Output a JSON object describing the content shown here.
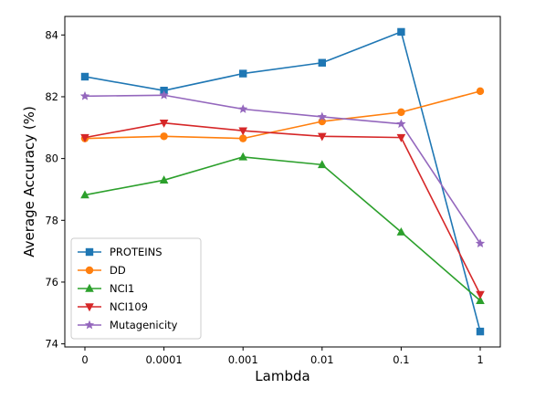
{
  "chart_data": {
    "type": "line",
    "categories": [
      "0",
      "0.0001",
      "0.001",
      "0.01",
      "0.1",
      "1"
    ],
    "xlabel": "Lambda",
    "ylabel": "Average Accuracy (%)",
    "ylim": [
      73.9,
      84.6
    ],
    "yticks": [
      74,
      76,
      78,
      80,
      82,
      84
    ],
    "grid": false,
    "legend_position": "lower-left",
    "series": [
      {
        "name": "PROTEINS",
        "color": "#1f77b4",
        "marker": "square",
        "values": [
          82.65,
          82.2,
          82.75,
          83.1,
          84.1,
          74.4
        ]
      },
      {
        "name": "DD",
        "color": "#ff7f0e",
        "marker": "circle",
        "values": [
          80.65,
          80.72,
          80.65,
          81.2,
          81.5,
          82.18
        ]
      },
      {
        "name": "NCI1",
        "color": "#2ca02c",
        "marker": "triangle-up",
        "values": [
          78.82,
          79.3,
          80.05,
          79.8,
          77.62,
          75.4
        ]
      },
      {
        "name": "NCI109",
        "color": "#d62728",
        "marker": "triangle-down",
        "values": [
          80.68,
          81.15,
          80.9,
          80.72,
          80.68,
          75.6
        ]
      },
      {
        "name": "Mutagenicity",
        "color": "#9467bd",
        "marker": "star",
        "values": [
          82.02,
          82.05,
          81.6,
          81.35,
          81.12,
          77.25
        ]
      }
    ]
  }
}
